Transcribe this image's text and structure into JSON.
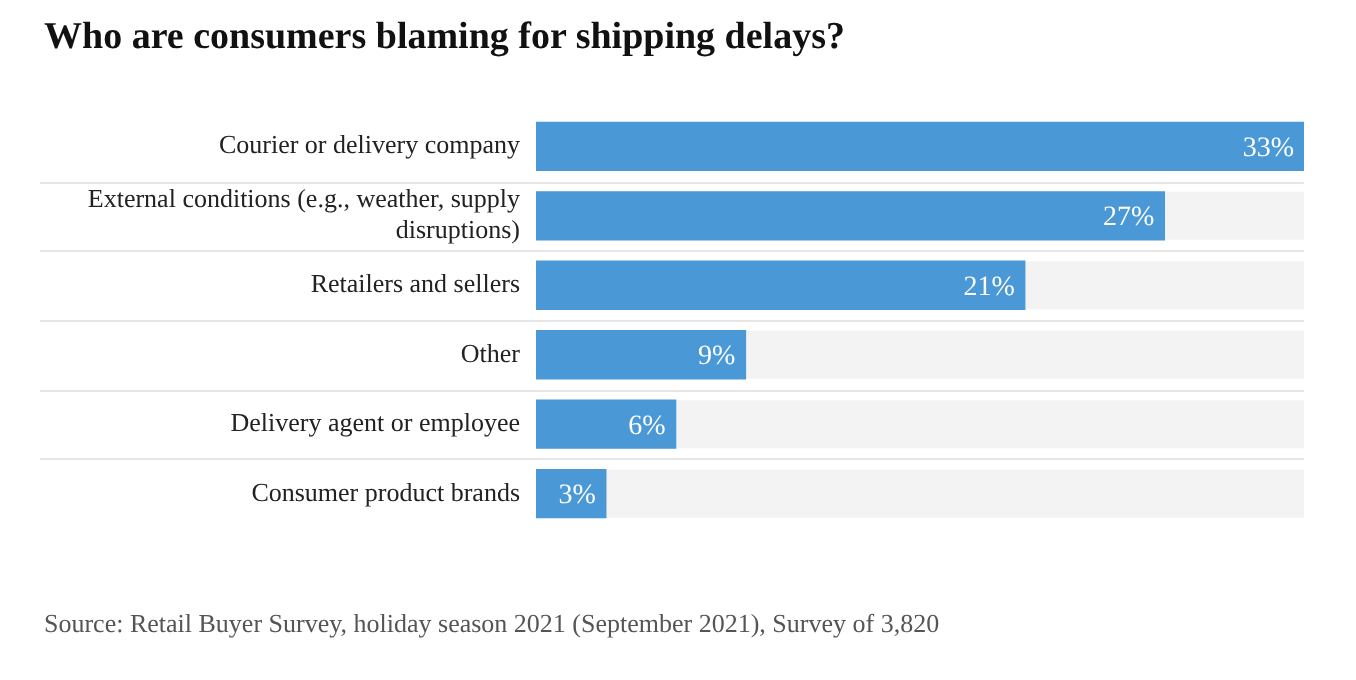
{
  "chart_data": {
    "type": "bar",
    "orientation": "horizontal",
    "title": "Who are consumers blaming for shipping delays?",
    "categories": [
      "Courier or delivery company",
      "External conditions (e.g., weather, supply disruptions)",
      "Retailers and sellers",
      "Other",
      "Delivery agent or employee",
      "Consumer product brands"
    ],
    "values": [
      33,
      27,
      21,
      9,
      6,
      3
    ],
    "value_labels": [
      "33%",
      "27%",
      "21%",
      "9%",
      "6%",
      "3%"
    ],
    "color": "#4a98d6",
    "annotations": [
      "Source: Retail Buyer Survey, holiday season 2021 (September 2021), Survey of 3,820"
    ],
    "legend": false,
    "grid": false
  }
}
